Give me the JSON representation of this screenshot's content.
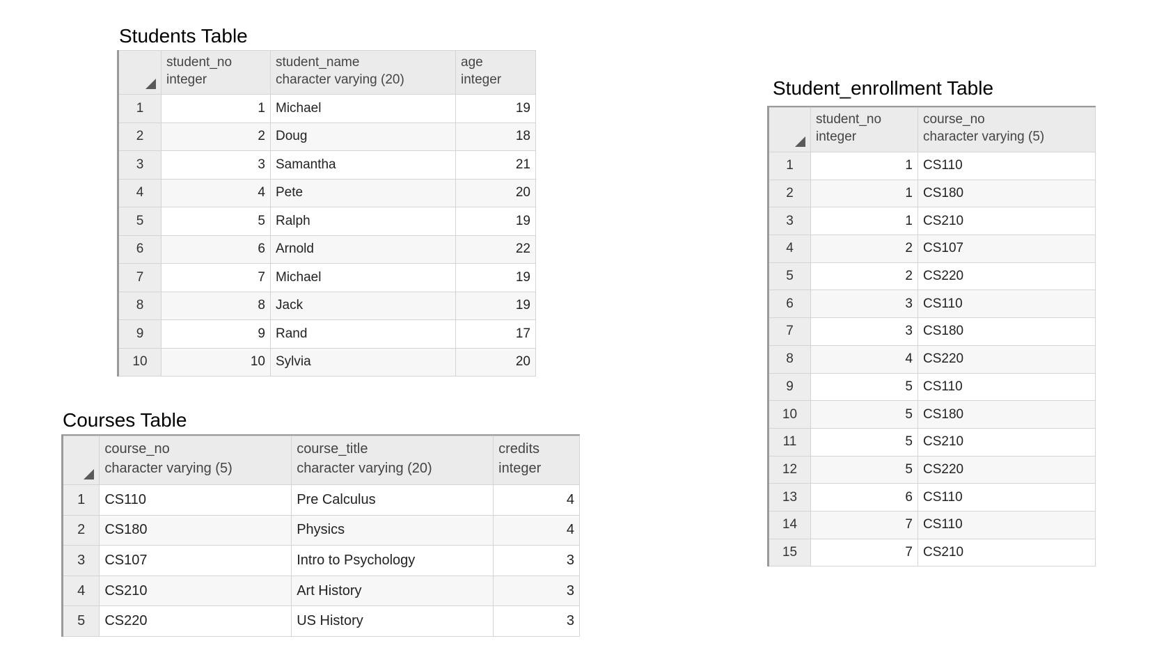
{
  "students": {
    "title": "Students Table",
    "columns": [
      {
        "name": "student_no",
        "type": "integer"
      },
      {
        "name": "student_name",
        "type": "character varying (20)"
      },
      {
        "name": "age",
        "type": "integer"
      }
    ],
    "rows": [
      {
        "row": "1",
        "cells": [
          "1",
          "Michael",
          "19"
        ]
      },
      {
        "row": "2",
        "cells": [
          "2",
          "Doug",
          "18"
        ]
      },
      {
        "row": "3",
        "cells": [
          "3",
          "Samantha",
          "21"
        ]
      },
      {
        "row": "4",
        "cells": [
          "4",
          "Pete",
          "20"
        ]
      },
      {
        "row": "5",
        "cells": [
          "5",
          "Ralph",
          "19"
        ]
      },
      {
        "row": "6",
        "cells": [
          "6",
          "Arnold",
          "22"
        ]
      },
      {
        "row": "7",
        "cells": [
          "7",
          "Michael",
          "19"
        ]
      },
      {
        "row": "8",
        "cells": [
          "8",
          "Jack",
          "19"
        ]
      },
      {
        "row": "9",
        "cells": [
          "9",
          "Rand",
          "17"
        ]
      },
      {
        "row": "10",
        "cells": [
          "10",
          "Sylvia",
          "20"
        ]
      }
    ]
  },
  "courses": {
    "title": "Courses Table",
    "columns": [
      {
        "name": "course_no",
        "type": "character varying (5)"
      },
      {
        "name": "course_title",
        "type": "character varying (20)"
      },
      {
        "name": "credits",
        "type": "integer"
      }
    ],
    "rows": [
      {
        "row": "1",
        "cells": [
          "CS110",
          "Pre Calculus",
          "4"
        ]
      },
      {
        "row": "2",
        "cells": [
          "CS180",
          "Physics",
          "4"
        ]
      },
      {
        "row": "3",
        "cells": [
          "CS107",
          "Intro to Psychology",
          "3"
        ]
      },
      {
        "row": "4",
        "cells": [
          "CS210",
          "Art History",
          "3"
        ]
      },
      {
        "row": "5",
        "cells": [
          "CS220",
          "US History",
          "3"
        ]
      }
    ]
  },
  "enrollment": {
    "title": "Student_enrollment Table",
    "columns": [
      {
        "name": "student_no",
        "type": "integer"
      },
      {
        "name": "course_no",
        "type": "character varying (5)"
      }
    ],
    "rows": [
      {
        "row": "1",
        "cells": [
          "1",
          "CS110"
        ]
      },
      {
        "row": "2",
        "cells": [
          "1",
          "CS180"
        ]
      },
      {
        "row": "3",
        "cells": [
          "1",
          "CS210"
        ]
      },
      {
        "row": "4",
        "cells": [
          "2",
          "CS107"
        ]
      },
      {
        "row": "5",
        "cells": [
          "2",
          "CS220"
        ]
      },
      {
        "row": "6",
        "cells": [
          "3",
          "CS110"
        ]
      },
      {
        "row": "7",
        "cells": [
          "3",
          "CS180"
        ]
      },
      {
        "row": "8",
        "cells": [
          "4",
          "CS220"
        ]
      },
      {
        "row": "9",
        "cells": [
          "5",
          "CS110"
        ]
      },
      {
        "row": "10",
        "cells": [
          "5",
          "CS180"
        ]
      },
      {
        "row": "11",
        "cells": [
          "5",
          "CS210"
        ]
      },
      {
        "row": "12",
        "cells": [
          "5",
          "CS220"
        ]
      },
      {
        "row": "13",
        "cells": [
          "6",
          "CS110"
        ]
      },
      {
        "row": "14",
        "cells": [
          "7",
          "CS110"
        ]
      },
      {
        "row": "15",
        "cells": [
          "7",
          "CS210"
        ]
      }
    ]
  }
}
